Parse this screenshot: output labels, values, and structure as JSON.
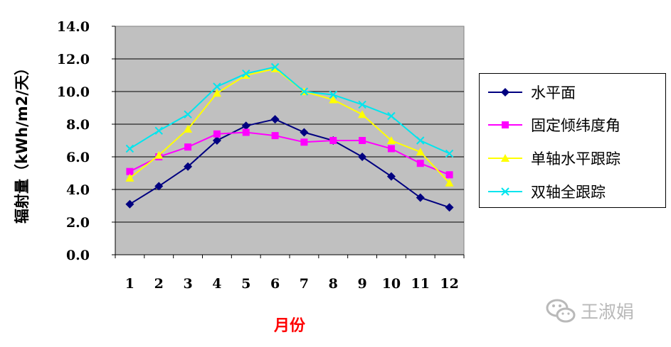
{
  "chart_data": {
    "type": "line",
    "title": "",
    "xlabel": "月份",
    "ylabel": "辐射量（kWh/m2/天）",
    "categories": [
      "1",
      "2",
      "3",
      "4",
      "5",
      "6",
      "7",
      "8",
      "9",
      "10",
      "11",
      "12"
    ],
    "ylim": [
      0,
      14
    ],
    "yticks": [
      "0.0",
      "2.0",
      "4.0",
      "6.0",
      "8.0",
      "10.0",
      "12.0",
      "14.0"
    ],
    "grid": true,
    "legend_position": "right",
    "series": [
      {
        "name": "水平面",
        "color": "#000080",
        "marker": "diamond",
        "values": [
          3.1,
          4.2,
          5.4,
          7.0,
          7.9,
          8.3,
          7.5,
          7.0,
          6.0,
          4.8,
          3.5,
          2.9
        ]
      },
      {
        "name": "固定倾纬度角",
        "color": "#ff00ff",
        "marker": "square",
        "values": [
          5.1,
          6.0,
          6.6,
          7.4,
          7.5,
          7.3,
          6.9,
          7.0,
          7.0,
          6.5,
          5.6,
          4.9
        ]
      },
      {
        "name": "单轴水平跟踪",
        "color": "#ffff00",
        "marker": "triangle",
        "values": [
          4.7,
          6.1,
          7.7,
          9.9,
          11.0,
          11.4,
          10.0,
          9.5,
          8.6,
          7.0,
          6.3,
          4.4
        ]
      },
      {
        "name": "双轴全跟踪",
        "color": "#00e5ee",
        "marker": "x",
        "values": [
          6.5,
          7.6,
          8.6,
          10.3,
          11.1,
          11.5,
          10.0,
          9.8,
          9.2,
          8.5,
          7.0,
          6.2
        ]
      }
    ]
  },
  "watermark": {
    "text": "王淑娟",
    "icon": "wechat-icon"
  }
}
